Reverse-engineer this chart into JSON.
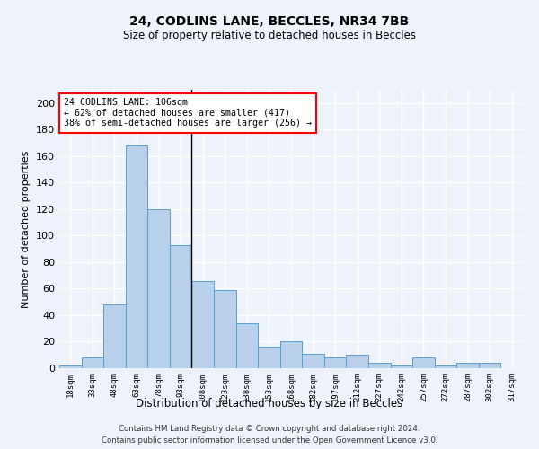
{
  "title1": "24, CODLINS LANE, BECCLES, NR34 7BB",
  "title2": "Size of property relative to detached houses in Beccles",
  "xlabel": "Distribution of detached houses by size in Beccles",
  "ylabel": "Number of detached properties",
  "categories": [
    "18sqm",
    "33sqm",
    "48sqm",
    "63sqm",
    "78sqm",
    "93sqm",
    "108sqm",
    "123sqm",
    "138sqm",
    "153sqm",
    "168sqm",
    "182sqm",
    "197sqm",
    "212sqm",
    "227sqm",
    "242sqm",
    "257sqm",
    "272sqm",
    "287sqm",
    "302sqm",
    "317sqm"
  ],
  "values": [
    2,
    8,
    48,
    168,
    120,
    93,
    66,
    59,
    34,
    16,
    20,
    11,
    8,
    10,
    4,
    2,
    8,
    2,
    4,
    4,
    0
  ],
  "bar_color": "#b8d0ea",
  "bar_edge_color": "#5a9fd4",
  "annotation_property": "24 CODLINS LANE: 106sqm",
  "annotation_line1": "← 62% of detached houses are smaller (417)",
  "annotation_line2": "38% of semi-detached houses are larger (256) →",
  "vline_x": 5.5,
  "ylim": [
    0,
    210
  ],
  "yticks": [
    0,
    20,
    40,
    60,
    80,
    100,
    120,
    140,
    160,
    180,
    200
  ],
  "background_color": "#eef2fb",
  "grid_color": "#ffffff",
  "footer1": "Contains HM Land Registry data © Crown copyright and database right 2024.",
  "footer2": "Contains public sector information licensed under the Open Government Licence v3.0."
}
